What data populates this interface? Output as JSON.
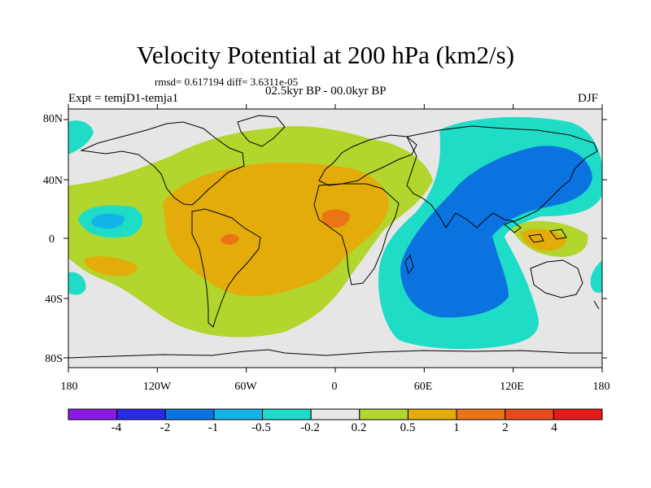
{
  "title": "Velocity Potential at 200 hPa (km2/s)",
  "stats": "rmsd= 0.617194 diff= 3.6311e-05",
  "expt": "Expt = temjD1-temja1",
  "period": "02.5kyr BP - 00.0kyr BP",
  "season": "DJF",
  "lat_labels": [
    "80N",
    "40N",
    "0",
    "40S",
    "80S"
  ],
  "lon_labels": [
    "180",
    "120W",
    "60W",
    "0",
    "60E",
    "120E",
    "180"
  ],
  "colorbar": {
    "labels": [
      "-4",
      "-2",
      "-1",
      "-0.5",
      "-0.2",
      "0.2",
      "0.5",
      "1",
      "2",
      "4"
    ],
    "colors": [
      "#8b19e8",
      "#2a2ae6",
      "#0b73e0",
      "#12b4e8",
      "#1edcc6",
      "#e6e6e6",
      "#b2d62d",
      "#e3ac0a",
      "#e87414",
      "#e64a19",
      "#e81a1a"
    ]
  },
  "colors": {
    "map_background": "#e6e6e6",
    "coast": "#000000"
  }
}
